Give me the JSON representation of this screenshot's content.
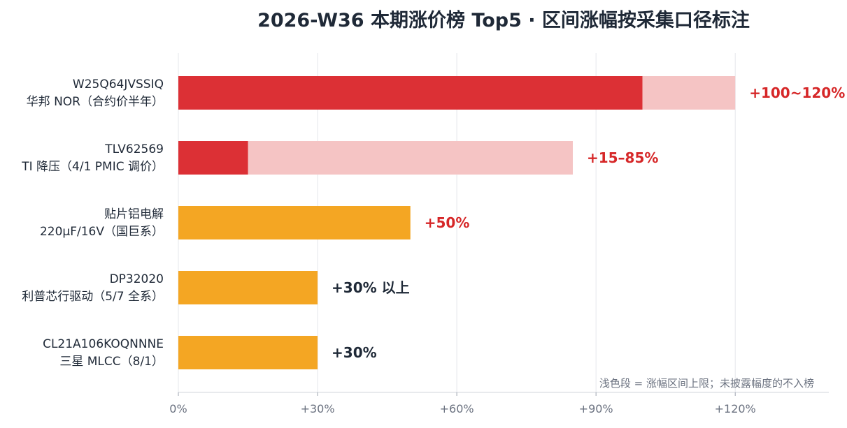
{
  "chart_data": {
    "type": "bar",
    "orientation": "horizontal",
    "title": "2026-W36 本期涨价榜 Top5 · 区间涨幅按采集口径标注",
    "xlim": [
      0,
      140
    ],
    "xticks": [
      "0%",
      "+30%",
      "+60%",
      "+90%",
      "+120%"
    ],
    "xtick_values": [
      0,
      30,
      60,
      90,
      120
    ],
    "grid": "vertical",
    "note": "浅色段 = 涨幅区间上限；未披露幅度的不入榜",
    "colors": {
      "range_low": "#dc3035",
      "range_high": "#f5c4c4",
      "point": "#f4a623",
      "label_range": "#d62728",
      "label_dark": "#1f2937"
    },
    "items": [
      {
        "line1": "W25Q64JVSSIQ",
        "line2": "华邦 NOR（合约价半年）",
        "low": 100,
        "high": 120,
        "label": "+100~120%",
        "kind": "range"
      },
      {
        "line1": "TLV62569",
        "line2": "TI 降压（4/1 PMIC 调价）",
        "low": 15,
        "high": 85,
        "label": "+15–85%",
        "kind": "range"
      },
      {
        "line1": "贴片铝电解",
        "line2": "220μF/16V（国巨系）",
        "low": 50,
        "high": 50,
        "label": "+50%",
        "kind": "point-red"
      },
      {
        "line1": "DP32020",
        "line2": "利普芯行驱动（5/7 全系）",
        "low": 30,
        "high": 30,
        "label": "+30% 以上",
        "kind": "point"
      },
      {
        "line1": "CL21A106KOQNNNE",
        "line2": "三星 MLCC（8/1）",
        "low": 30,
        "high": 30,
        "label": "+30%",
        "kind": "point"
      }
    ]
  }
}
